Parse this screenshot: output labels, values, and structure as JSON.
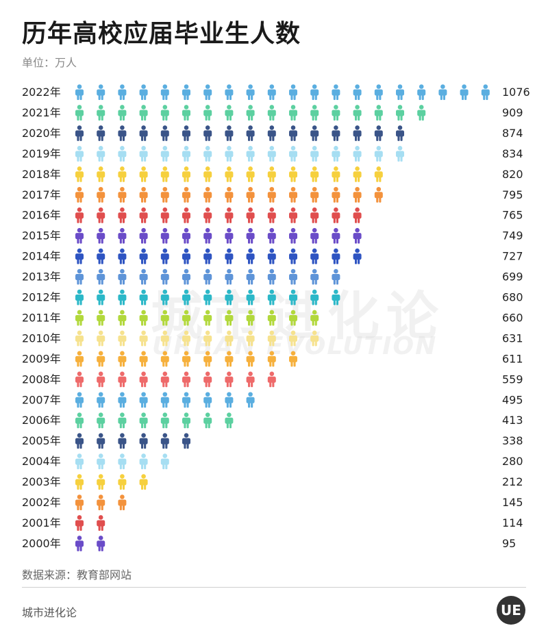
{
  "title": "历年高校应届毕业生人数",
  "unit": "单位：万人",
  "watermark": {
    "cn": "城市进化论",
    "en": "URBAN EVOLUTION"
  },
  "source": "数据来源：教育部网站",
  "brand": "城市进化论",
  "logo_text": "UE",
  "chart_data": {
    "type": "bar",
    "orientation": "horizontal",
    "encoding": "pictogram",
    "icon": "person-icon",
    "title": "历年高校应届毕业生人数",
    "unit": "单位：万人",
    "categories": [
      "2022年",
      "2021年",
      "2020年",
      "2019年",
      "2018年",
      "2017年",
      "2016年",
      "2015年",
      "2014年",
      "2013年",
      "2012年",
      "2011年",
      "2010年",
      "2009年",
      "2008年",
      "2007年",
      "2006年",
      "2005年",
      "2004年",
      "2003年",
      "2002年",
      "2001年",
      "2000年"
    ],
    "values": [
      1076,
      909,
      874,
      834,
      820,
      795,
      765,
      749,
      727,
      699,
      680,
      660,
      631,
      611,
      559,
      495,
      413,
      338,
      280,
      212,
      145,
      114,
      95
    ],
    "icon_counts": [
      20,
      17,
      16,
      16,
      15,
      15,
      14,
      14,
      14,
      13,
      13,
      12,
      12,
      11,
      10,
      9,
      8,
      6,
      5,
      4,
      3,
      2,
      2
    ],
    "colors": [
      "#5aaee0",
      "#5cd0a0",
      "#3a5488",
      "#a6def2",
      "#f6d03e",
      "#f3923c",
      "#e04e4e",
      "#6a4cc8",
      "#2e54c2",
      "#5e94d8",
      "#2cb8c8",
      "#b2d83c",
      "#f6e28e",
      "#f6b03c",
      "#ee6a6a",
      "#5aaee0",
      "#5cd0a0",
      "#3a5488",
      "#a6def2",
      "#f6d03e",
      "#f3923c",
      "#e04e4e",
      "#6a4cc8"
    ],
    "grid": false,
    "legend": "none"
  }
}
